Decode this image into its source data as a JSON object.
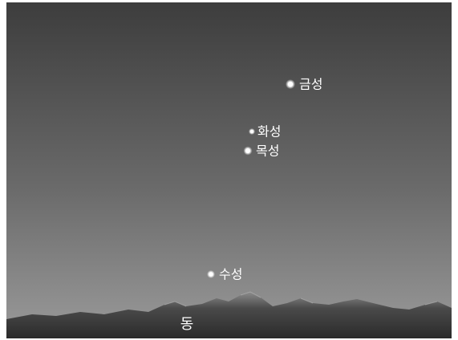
{
  "planets": [
    {
      "label": "금성"
    },
    {
      "label": "화성"
    },
    {
      "label": "목성"
    },
    {
      "label": "수성"
    }
  ],
  "direction": "동"
}
